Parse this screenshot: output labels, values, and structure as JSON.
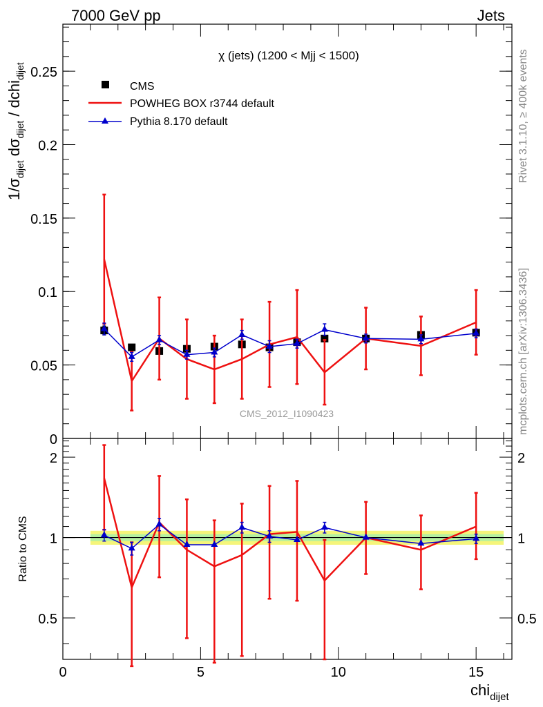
{
  "header": {
    "left": "7000 GeV pp",
    "right": "Jets"
  },
  "side_labels": {
    "rivet": "Rivet 3.1.10, ≥ 400k events",
    "mcplots": "mcplots.cern.ch [arXiv:1306.3436]"
  },
  "plot_title": "χ (jets) (1200 < Mjj < 1500)",
  "watermark": "CMS_2012_I1090423",
  "axes": {
    "ylabel_main": "1/σ_dijet dσ_dijet / dchi_dijet",
    "ylabel_ratio": "Ratio to CMS",
    "xlabel": "chi_dijet"
  },
  "chart_data": [
    {
      "type": "line",
      "panel": "main",
      "xlim": [
        0,
        16.3
      ],
      "ylim": [
        0,
        0.282
      ],
      "yticks": [
        0,
        0.05,
        0.1,
        0.15,
        0.2,
        0.25
      ],
      "ytick_labels": [
        "0",
        "0.05",
        "0.1",
        "0.15",
        "0.2",
        "0.25"
      ],
      "grid": false,
      "legend_position": "top-left",
      "x": [
        1.5,
        2.5,
        3.5,
        4.5,
        5.5,
        6.5,
        7.5,
        8.5,
        9.5,
        11,
        13,
        15
      ],
      "series": [
        {
          "name": "CMS",
          "marker": "square",
          "color": "#000000",
          "values": [
            0.0735,
            0.062,
            0.0595,
            0.061,
            0.0625,
            0.064,
            0.062,
            0.0655,
            0.068,
            0.068,
            0.0705,
            0.072
          ],
          "errors": [
            0.003,
            0.002,
            0.002,
            0.002,
            0.002,
            0.002,
            0.002,
            0.002,
            0.002,
            0.002,
            0.002,
            0.002
          ]
        },
        {
          "name": "POWHEG BOX r3744 default",
          "marker": "line",
          "color": "#ee1111",
          "values": [
            0.122,
            0.039,
            0.068,
            0.054,
            0.047,
            0.054,
            0.064,
            0.069,
            0.045,
            0.068,
            0.063,
            0.079
          ],
          "errors": [
            0.044,
            0.02,
            0.028,
            0.027,
            0.023,
            0.027,
            0.029,
            0.032,
            0.022,
            0.021,
            0.02,
            0.022
          ]
        },
        {
          "name": "Pythia 8.170 default",
          "marker": "triangle",
          "color": "#0000cc",
          "values": [
            0.0745,
            0.0555,
            0.067,
            0.057,
            0.0585,
            0.0705,
            0.0625,
            0.0645,
            0.074,
            0.068,
            0.0675,
            0.0715
          ],
          "errors": [
            0.004,
            0.003,
            0.003,
            0.003,
            0.003,
            0.003,
            0.004,
            0.003,
            0.004,
            0.003,
            0.003,
            0.003
          ]
        }
      ]
    },
    {
      "type": "line",
      "panel": "ratio",
      "xlim": [
        0,
        16.3
      ],
      "ylim": [
        0.35,
        2.35
      ],
      "yscale": "log",
      "yticks": [
        0.5,
        1,
        2
      ],
      "ytick_labels": [
        "0.5",
        "1",
        "2"
      ],
      "xticks": [
        0,
        5,
        10,
        15
      ],
      "xtick_labels": [
        "0",
        "5",
        "10",
        "15"
      ],
      "x": [
        1.5,
        2.5,
        3.5,
        4.5,
        5.5,
        6.5,
        7.5,
        8.5,
        9.5,
        11,
        13,
        15
      ],
      "reference_band": {
        "inner": 0.03,
        "outer": 0.06,
        "x_range": [
          1,
          16
        ]
      },
      "series": [
        {
          "name": "POWHEG BOX r3744 default",
          "color": "#ee1111",
          "values": [
            1.67,
            0.65,
            1.14,
            0.9,
            0.78,
            0.86,
            1.03,
            1.05,
            0.69,
            1.0,
            0.9,
            1.1
          ],
          "err_lo": [
            0.6,
            0.32,
            0.43,
            0.48,
            0.44,
            0.5,
            0.44,
            0.47,
            0.34,
            0.27,
            0.26,
            0.27
          ],
          "err_hi": [
            0.55,
            0.31,
            0.56,
            0.49,
            0.38,
            0.48,
            0.53,
            0.58,
            0.29,
            0.36,
            0.31,
            0.37
          ]
        },
        {
          "name": "Pythia 8.170 default",
          "color": "#0000cc",
          "values": [
            1.02,
            0.91,
            1.12,
            0.94,
            0.94,
            1.09,
            1.01,
            0.98,
            1.09,
            1.0,
            0.95,
            0.99
          ],
          "err_lo": [
            0.05,
            0.05,
            0.06,
            0.0,
            0.0,
            0.05,
            0.05,
            0.0,
            0.05,
            0.0,
            0.0,
            0.04
          ],
          "err_hi": [
            0.05,
            0.05,
            0.06,
            0.0,
            0.0,
            0.05,
            0.05,
            0.0,
            0.05,
            0.0,
            0.0,
            0.04
          ]
        }
      ]
    }
  ]
}
